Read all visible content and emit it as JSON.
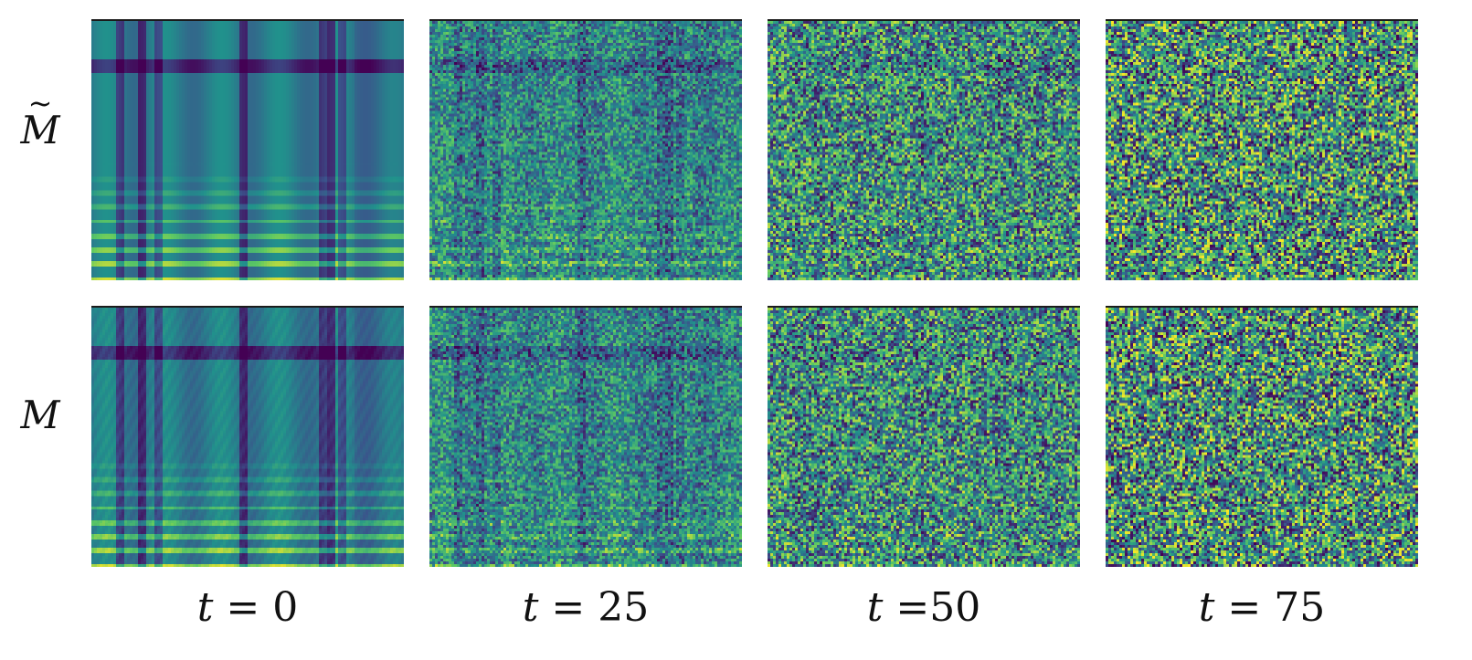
{
  "rows": [
    {
      "label": "M",
      "tilde": true
    },
    {
      "label": "M",
      "tilde": false
    }
  ],
  "columns": [
    {
      "label": "t = 0",
      "noise": 0.0
    },
    {
      "label": "t = 25",
      "noise": 0.55
    },
    {
      "label": "t =50",
      "noise": 0.85
    },
    {
      "label": "t = 75",
      "noise": 1.0
    }
  ],
  "colormap": "viridis",
  "colors": {
    "low": "#440154",
    "mid": "#21918c",
    "high": "#fde725"
  }
}
